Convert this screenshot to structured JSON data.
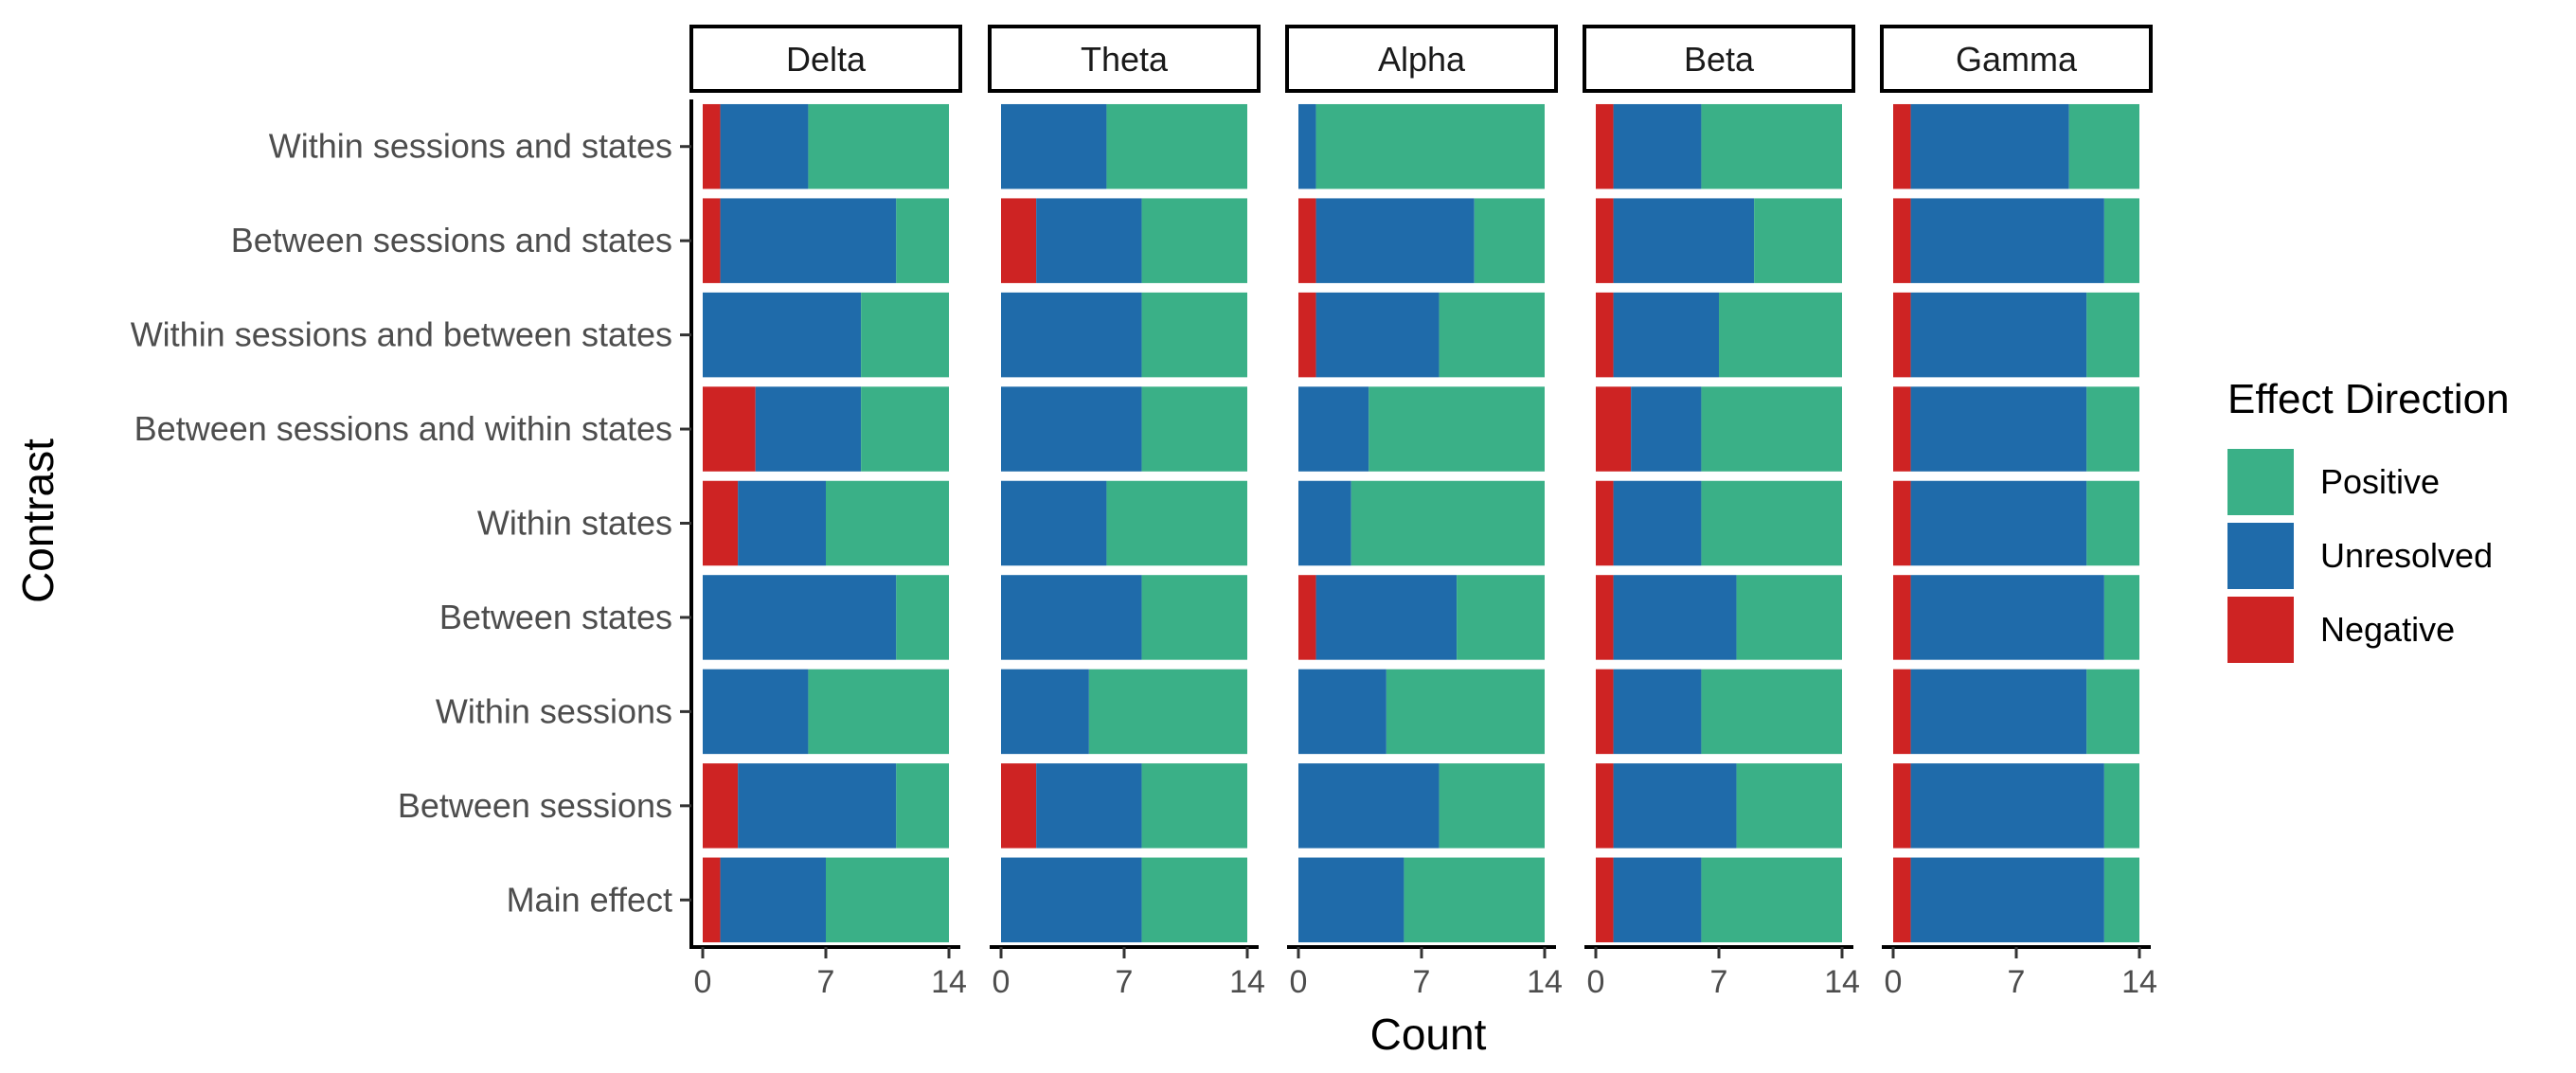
{
  "chart_data": {
    "type": "bar",
    "orientation": "horizontal",
    "stacked": true,
    "xlabel": "Count",
    "ylabel": "Contrast",
    "xlim": [
      0,
      14
    ],
    "xticks": [
      0,
      7,
      14
    ],
    "grid": false,
    "legend": {
      "title": "Effect Direction",
      "placement": "right",
      "entries": [
        {
          "name": "Positive",
          "color": "#3AB087"
        },
        {
          "name": "Unresolved",
          "color": "#1F6BAA"
        },
        {
          "name": "Negative",
          "color": "#CE2323"
        }
      ]
    },
    "categories": [
      "Within sessions and states",
      "Between sessions and states",
      "Within sessions and between states",
      "Between sessions and within states",
      "Within states",
      "Between states",
      "Within sessions",
      "Between sessions",
      "Main effect"
    ],
    "stack_order": [
      "Negative",
      "Unresolved",
      "Positive"
    ],
    "panels": [
      {
        "name": "Delta",
        "series": [
          {
            "name": "Negative",
            "values": [
              1,
              1,
              0,
              3,
              2,
              0,
              0,
              2,
              1
            ]
          },
          {
            "name": "Unresolved",
            "values": [
              5,
              10,
              9,
              6,
              5,
              11,
              6,
              9,
              6
            ]
          },
          {
            "name": "Positive",
            "values": [
              8,
              3,
              5,
              5,
              7,
              3,
              8,
              3,
              7
            ]
          }
        ]
      },
      {
        "name": "Theta",
        "series": [
          {
            "name": "Negative",
            "values": [
              0,
              2,
              0,
              0,
              0,
              0,
              0,
              2,
              0
            ]
          },
          {
            "name": "Unresolved",
            "values": [
              6,
              6,
              8,
              8,
              6,
              8,
              5,
              6,
              8
            ]
          },
          {
            "name": "Positive",
            "values": [
              8,
              6,
              6,
              6,
              8,
              6,
              9,
              6,
              6
            ]
          }
        ]
      },
      {
        "name": "Alpha",
        "series": [
          {
            "name": "Negative",
            "values": [
              0,
              1,
              1,
              0,
              0,
              1,
              0,
              0,
              0
            ]
          },
          {
            "name": "Unresolved",
            "values": [
              1,
              9,
              7,
              4,
              3,
              8,
              5,
              8,
              6
            ]
          },
          {
            "name": "Positive",
            "values": [
              13,
              4,
              6,
              10,
              11,
              5,
              9,
              6,
              8
            ]
          }
        ]
      },
      {
        "name": "Beta",
        "series": [
          {
            "name": "Negative",
            "values": [
              1,
              1,
              1,
              2,
              1,
              1,
              1,
              1,
              1
            ]
          },
          {
            "name": "Unresolved",
            "values": [
              5,
              8,
              6,
              4,
              5,
              7,
              5,
              7,
              5
            ]
          },
          {
            "name": "Positive",
            "values": [
              8,
              5,
              7,
              8,
              8,
              6,
              8,
              6,
              8
            ]
          }
        ]
      },
      {
        "name": "Gamma",
        "series": [
          {
            "name": "Negative",
            "values": [
              1,
              1,
              1,
              1,
              1,
              1,
              1,
              1,
              1
            ]
          },
          {
            "name": "Unresolved",
            "values": [
              9,
              11,
              10,
              10,
              10,
              11,
              10,
              11,
              11
            ]
          },
          {
            "name": "Positive",
            "values": [
              4,
              2,
              3,
              3,
              3,
              2,
              3,
              2,
              2
            ]
          }
        ]
      }
    ]
  }
}
